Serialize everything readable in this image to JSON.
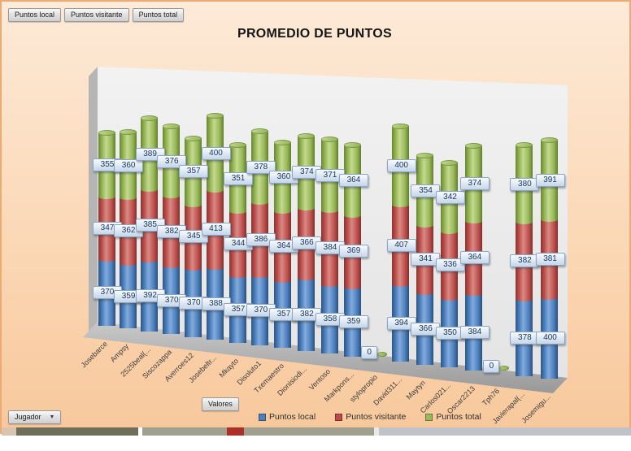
{
  "pivot_field_buttons": [
    {
      "label": "Puntos local"
    },
    {
      "label": "Puntos visitante"
    },
    {
      "label": "Puntos total"
    }
  ],
  "axis_field_button": {
    "label": "Valores"
  },
  "filter_field_button": {
    "label": "Jugador"
  },
  "legend": {
    "position": "bottom",
    "items": [
      {
        "label": "Puntos local",
        "color": "#4E81BC"
      },
      {
        "label": "Puntos visitante",
        "color": "#BF4B48"
      },
      {
        "label": "Puntos total",
        "color": "#9ABA58"
      }
    ]
  },
  "chart_data": {
    "type": "bar",
    "subtype": "3d-stacked-cylinder",
    "title": "PROMEDIO DE PUNTOS",
    "categories": [
      "Josebarce",
      "Ampsy",
      "2525beal(...",
      "Siscozappa",
      "Averroes12",
      "Josebeltr...",
      "Mkayto",
      "Disoluto1",
      "Txemaestro",
      "Dionisiodi...",
      "Ventoso",
      "Markpons...",
      "stylopropio",
      "David311...",
      "Maytyn",
      "Carlos021...",
      "Oscar2213",
      "Tph76",
      "Javierapal(...",
      "Josemigu..."
    ],
    "series": [
      {
        "name": "Puntos local",
        "color": "#4E81BC",
        "values": [
          370,
          359,
          392,
          370,
          370,
          388,
          357,
          370,
          357,
          382,
          358,
          359,
          0,
          394,
          366,
          350,
          384,
          0,
          378,
          400
        ]
      },
      {
        "name": "Puntos visitante",
        "color": "#BF4B48",
        "values": [
          347,
          362,
          385,
          382,
          345,
          413,
          344,
          386,
          364,
          366,
          384,
          369,
          0,
          407,
          341,
          336,
          364,
          0,
          382,
          381
        ]
      },
      {
        "name": "Puntos total",
        "color": "#9ABA58",
        "values": [
          355,
          360,
          389,
          376,
          357,
          400,
          351,
          378,
          360,
          374,
          371,
          364,
          0,
          400,
          354,
          342,
          374,
          0,
          380,
          391
        ]
      }
    ],
    "data_labels": true,
    "zero_value_label": "0",
    "gridlines": false,
    "value_axis_visible": false
  },
  "colors": {
    "background": "#FBD8B6",
    "wall": "#EDEDED",
    "floor": "#ADADAD",
    "label_box": "#DCE6F1",
    "label_text": "#17375E"
  }
}
